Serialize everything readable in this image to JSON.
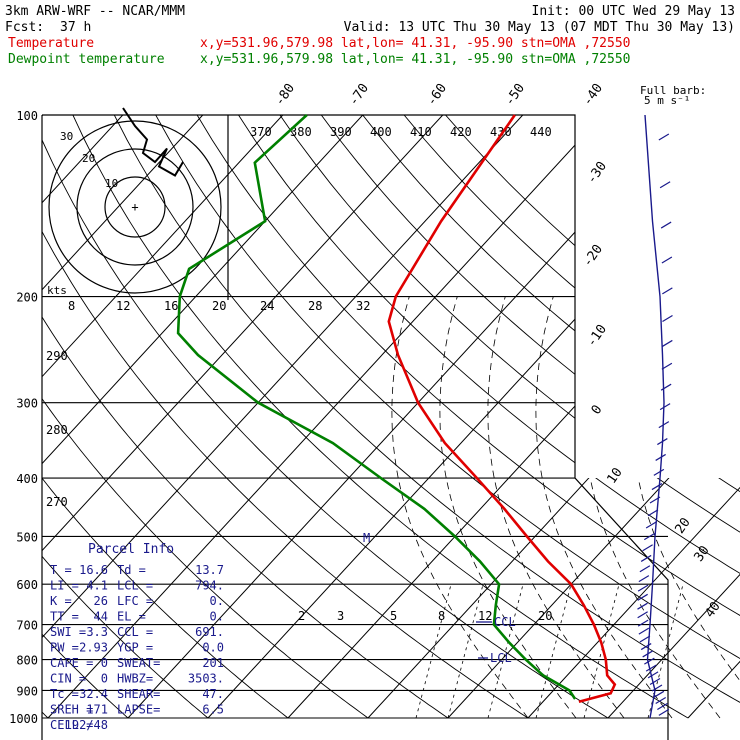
{
  "header": {
    "model": "3km ARW-WRF -- NCAR/MMM",
    "init": "Init: 00 UTC Wed 29 May 13",
    "fcst_label": "Fcst:",
    "fcst_value": "37 h",
    "valid": "Valid: 13 UTC Thu 30 May 13 (07 MDT Thu 30 May 13)",
    "temp_label": "Temperature",
    "dew_label": "Dewpoint temperature",
    "temp_loc": "x,y=531.96,579.98   lat,lon= 41.31, -95.90   stn=OMA ,72550",
    "dew_loc": "x,y=531.96,579.98   lat,lon= 41.31, -95.90   stn=OMA ,72550"
  },
  "colors": {
    "temperature": "#e00000",
    "dewpoint": "#008000",
    "parcel": "#1a1a8c",
    "wind": "#1a1a8c"
  },
  "barb_legend": {
    "line1": "Full barb:",
    "line2": "5 m s⁻¹"
  },
  "hodograph": {
    "unit": "kts",
    "ring_labels": [
      "10",
      "20",
      "30"
    ],
    "speed_ticks": [
      "8",
      "12",
      "16",
      "20",
      "24",
      "28",
      "32"
    ],
    "center_symbol": "+"
  },
  "theta_labels": [
    "370",
    "380",
    "390",
    "400",
    "410",
    "420",
    "430",
    "440"
  ],
  "theta_left_labels": [
    "290",
    "280",
    "270"
  ],
  "mixing_ratio_labels": [
    "2",
    "3",
    "5",
    "8",
    "12",
    "20"
  ],
  "levels": {
    "lcl": "LCL",
    "ccl": "CCL",
    "m": "M"
  },
  "parcel_info": {
    "title": "Parcel Info",
    "rows": [
      [
        "T  =",
        "16.6",
        "Td =",
        "13.7"
      ],
      [
        "LI =",
        "4.1",
        "LCL =",
        "794."
      ],
      [
        "K  =",
        "26",
        "LFC =",
        "0."
      ],
      [
        "TT =",
        "44",
        "EL =",
        "0."
      ],
      [
        "SWI =",
        "3.3",
        "CCL =",
        "691."
      ],
      [
        "PW =",
        "2.93",
        "YGP =",
        "0.0"
      ],
      [
        "CAPE =",
        "0",
        "SWEAT=",
        "201"
      ],
      [
        "CIN =",
        "0",
        "HWBZ=",
        "3503."
      ],
      [
        "Tc =",
        "32.4",
        "SHEAR=",
        "47."
      ],
      [
        "SREH =",
        "171",
        "LAPSE=",
        "6.5"
      ],
      [
        "CELL =",
        "192/48",
        "",
        ""
      ]
    ]
  },
  "chart_data": {
    "type": "line",
    "title": "3km ARW-WRF -- NCAR/MMM",
    "xlabel": "",
    "ylabel": "",
    "pressure_ticks": [
      "100",
      "200",
      "300",
      "400",
      "500",
      "600",
      "700",
      "800",
      "900",
      "1000"
    ],
    "temperature_ticks": [
      "-80",
      "-70",
      "-60",
      "-50",
      "-40",
      "-30",
      "-20",
      "-10",
      "0",
      "10",
      "20",
      "30",
      "40"
    ],
    "skewt_range": {
      "pressure_top": 100,
      "pressure_bottom": 1000
    },
    "series": [
      {
        "name": "Temperature",
        "values": [
          [
            100,
            -61
          ],
          [
            150,
            -58
          ],
          [
            200,
            -55
          ],
          [
            220,
            -53
          ],
          [
            250,
            -48
          ],
          [
            300,
            -40
          ],
          [
            350,
            -32
          ],
          [
            400,
            -24
          ],
          [
            450,
            -17
          ],
          [
            500,
            -11
          ],
          [
            550,
            -5.5
          ],
          [
            600,
            0
          ],
          [
            650,
            4
          ],
          [
            700,
            7.5
          ],
          [
            750,
            10.5
          ],
          [
            800,
            13
          ],
          [
            850,
            15
          ],
          [
            880,
            17
          ],
          [
            910,
            17.5
          ],
          [
            940,
            14.5
          ]
        ]
      },
      {
        "name": "Dewpoint temperature",
        "values": [
          [
            100,
            -87
          ],
          [
            120,
            -88
          ],
          [
            150,
            -80
          ],
          [
            180,
            -84
          ],
          [
            200,
            -82
          ],
          [
            230,
            -78
          ],
          [
            250,
            -73
          ],
          [
            300,
            -60
          ],
          [
            350,
            -46
          ],
          [
            400,
            -36
          ],
          [
            450,
            -27
          ],
          [
            500,
            -20
          ],
          [
            550,
            -14
          ],
          [
            600,
            -9
          ],
          [
            650,
            -7
          ],
          [
            700,
            -5
          ],
          [
            750,
            -1
          ],
          [
            800,
            3
          ],
          [
            850,
            7
          ],
          [
            900,
            12
          ],
          [
            930,
            13.7
          ]
        ]
      }
    ],
    "wind_profile": [
      [
        100,
        10
      ],
      [
        150,
        25
      ],
      [
        200,
        40
      ],
      [
        250,
        45
      ],
      [
        300,
        48
      ],
      [
        350,
        45
      ],
      [
        400,
        40
      ],
      [
        500,
        30
      ],
      [
        600,
        25
      ],
      [
        700,
        20
      ],
      [
        800,
        15
      ],
      [
        900,
        30
      ],
      [
        1000,
        20
      ]
    ],
    "hodograph_path": [
      [
        -3,
        22
      ],
      [
        0,
        18
      ],
      [
        3,
        15
      ],
      [
        2,
        12
      ],
      [
        5,
        10
      ],
      [
        8,
        13
      ],
      [
        6,
        9
      ],
      [
        10,
        7
      ],
      [
        12,
        10
      ]
    ]
  }
}
